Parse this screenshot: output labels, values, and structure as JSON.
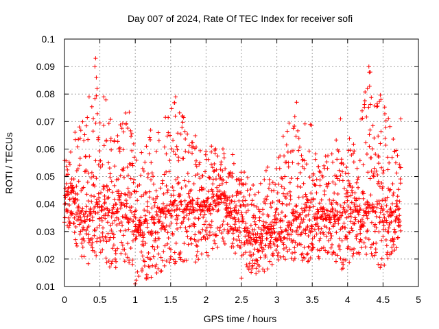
{
  "chart_data": {
    "type": "scatter",
    "title": "Day 007 of 2024, Rate Of TEC Index for receiver sofi",
    "xlabel": "GPS time / hours",
    "ylabel": "ROTI / TECUs",
    "xlim": [
      0,
      5
    ],
    "ylim": [
      0.01,
      0.1
    ],
    "grid": true,
    "xticks": [
      "0",
      "0.5",
      "1",
      "1.5",
      "2",
      "2.5",
      "3",
      "3.5",
      "4",
      "4.5",
      "5"
    ],
    "yticks": [
      "0.01",
      "0.02",
      "0.03",
      "0.04",
      "0.05",
      "0.06",
      "0.07",
      "0.08",
      "0.09",
      "0.1"
    ],
    "marker": "+",
    "color": "#ff0000",
    "series": [
      {
        "name": "sofi",
        "points_note": "approx. 2100 samples at 30 s cadence, 0 to 4.75 h",
        "x_range": [
          0,
          4.75
        ],
        "profile": [
          {
            "x": 0.0,
            "median": 0.041,
            "lo": 0.032,
            "hi": 0.056
          },
          {
            "x": 0.1,
            "median": 0.045,
            "lo": 0.03,
            "hi": 0.065
          },
          {
            "x": 0.25,
            "median": 0.035,
            "lo": 0.017,
            "hi": 0.07
          },
          {
            "x": 0.45,
            "median": 0.04,
            "lo": 0.02,
            "hi": 0.093
          },
          {
            "x": 0.7,
            "median": 0.038,
            "lo": 0.016,
            "hi": 0.066
          },
          {
            "x": 0.9,
            "median": 0.042,
            "lo": 0.018,
            "hi": 0.077
          },
          {
            "x": 1.0,
            "median": 0.03,
            "lo": 0.011,
            "hi": 0.06
          },
          {
            "x": 1.3,
            "median": 0.036,
            "lo": 0.013,
            "hi": 0.071
          },
          {
            "x": 1.55,
            "median": 0.04,
            "lo": 0.018,
            "hi": 0.079
          },
          {
            "x": 1.9,
            "median": 0.038,
            "lo": 0.018,
            "hi": 0.063
          },
          {
            "x": 2.2,
            "median": 0.042,
            "lo": 0.025,
            "hi": 0.061
          },
          {
            "x": 2.5,
            "median": 0.033,
            "lo": 0.019,
            "hi": 0.057
          },
          {
            "x": 2.7,
            "median": 0.027,
            "lo": 0.013,
            "hi": 0.045
          },
          {
            "x": 3.0,
            "median": 0.032,
            "lo": 0.019,
            "hi": 0.06
          },
          {
            "x": 3.3,
            "median": 0.036,
            "lo": 0.017,
            "hi": 0.077
          },
          {
            "x": 3.5,
            "median": 0.038,
            "lo": 0.019,
            "hi": 0.069
          },
          {
            "x": 3.75,
            "median": 0.036,
            "lo": 0.021,
            "hi": 0.058
          },
          {
            "x": 3.9,
            "median": 0.037,
            "lo": 0.016,
            "hi": 0.071
          },
          {
            "x": 4.1,
            "median": 0.037,
            "lo": 0.016,
            "hi": 0.061
          },
          {
            "x": 4.3,
            "median": 0.04,
            "lo": 0.02,
            "hi": 0.09
          },
          {
            "x": 4.5,
            "median": 0.038,
            "lo": 0.016,
            "hi": 0.078
          },
          {
            "x": 4.75,
            "median": 0.035,
            "lo": 0.026,
            "hi": 0.071
          }
        ],
        "spikes": [
          {
            "x": 0.44,
            "y": 0.093
          },
          {
            "x": 0.43,
            "y": 0.09
          },
          {
            "x": 0.45,
            "y": 0.086
          },
          {
            "x": 0.46,
            "y": 0.082
          },
          {
            "x": 1.57,
            "y": 0.079
          },
          {
            "x": 3.28,
            "y": 0.077
          },
          {
            "x": 4.3,
            "y": 0.09
          },
          {
            "x": 4.32,
            "y": 0.088
          },
          {
            "x": 4.28,
            "y": 0.082
          },
          {
            "x": 4.47,
            "y": 0.078
          },
          {
            "x": 3.9,
            "y": 0.071
          },
          {
            "x": 4.75,
            "y": 0.071
          },
          {
            "x": 1.0,
            "y": 0.011
          },
          {
            "x": 2.5,
            "y": 0.013
          }
        ]
      }
    ]
  }
}
